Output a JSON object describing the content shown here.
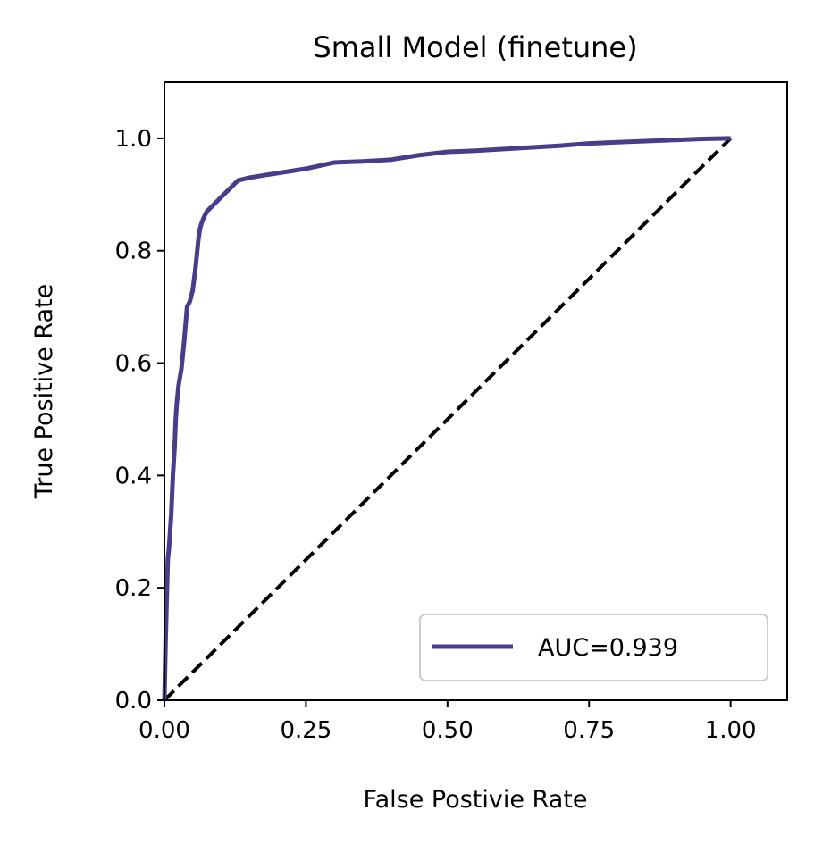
{
  "chart_data": {
    "type": "line",
    "title": "Small Model (finetune)",
    "xlabel": "False Postivie Rate",
    "ylabel": "True Positive Rate",
    "xlim": [
      0.0,
      1.1
    ],
    "ylim": [
      0.0,
      1.1
    ],
    "xticks": [
      0.0,
      0.25,
      0.5,
      0.75,
      1.0
    ],
    "xtick_labels": [
      "0.00",
      "0.25",
      "0.50",
      "0.75",
      "1.00"
    ],
    "yticks": [
      0.0,
      0.2,
      0.4,
      0.6,
      0.8,
      1.0
    ],
    "ytick_labels": [
      "0.0",
      "0.2",
      "0.4",
      "0.6",
      "0.8",
      "1.0"
    ],
    "grid": false,
    "legend_position": "lower-right",
    "series": [
      {
        "name": "AUC=0.939",
        "color": "#483d8b",
        "style": "solid",
        "x": [
          0.0,
          0.002,
          0.004,
          0.006,
          0.008,
          0.012,
          0.015,
          0.018,
          0.02,
          0.022,
          0.025,
          0.03,
          0.035,
          0.04,
          0.045,
          0.05,
          0.055,
          0.06,
          0.063,
          0.066,
          0.07,
          0.075,
          0.08,
          0.085,
          0.09,
          0.1,
          0.11,
          0.12,
          0.13,
          0.15,
          0.18,
          0.2,
          0.25,
          0.3,
          0.35,
          0.4,
          0.45,
          0.5,
          0.55,
          0.6,
          0.65,
          0.7,
          0.75,
          0.8,
          0.85,
          0.9,
          0.95,
          1.0
        ],
        "y": [
          0.0,
          0.1,
          0.18,
          0.25,
          0.27,
          0.33,
          0.4,
          0.45,
          0.5,
          0.53,
          0.56,
          0.59,
          0.64,
          0.7,
          0.71,
          0.73,
          0.77,
          0.82,
          0.84,
          0.85,
          0.86,
          0.87,
          0.875,
          0.88,
          0.885,
          0.895,
          0.905,
          0.915,
          0.925,
          0.93,
          0.935,
          0.938,
          0.946,
          0.957,
          0.959,
          0.962,
          0.97,
          0.976,
          0.978,
          0.981,
          0.984,
          0.987,
          0.991,
          0.993,
          0.995,
          0.997,
          0.999,
          1.0
        ]
      },
      {
        "name": "",
        "color": "#000000",
        "style": "dashed",
        "x": [
          0.0,
          1.0
        ],
        "y": [
          0.0,
          1.0
        ]
      }
    ],
    "legend": [
      {
        "label": "AUC=0.939",
        "color": "#483d8b"
      }
    ]
  }
}
